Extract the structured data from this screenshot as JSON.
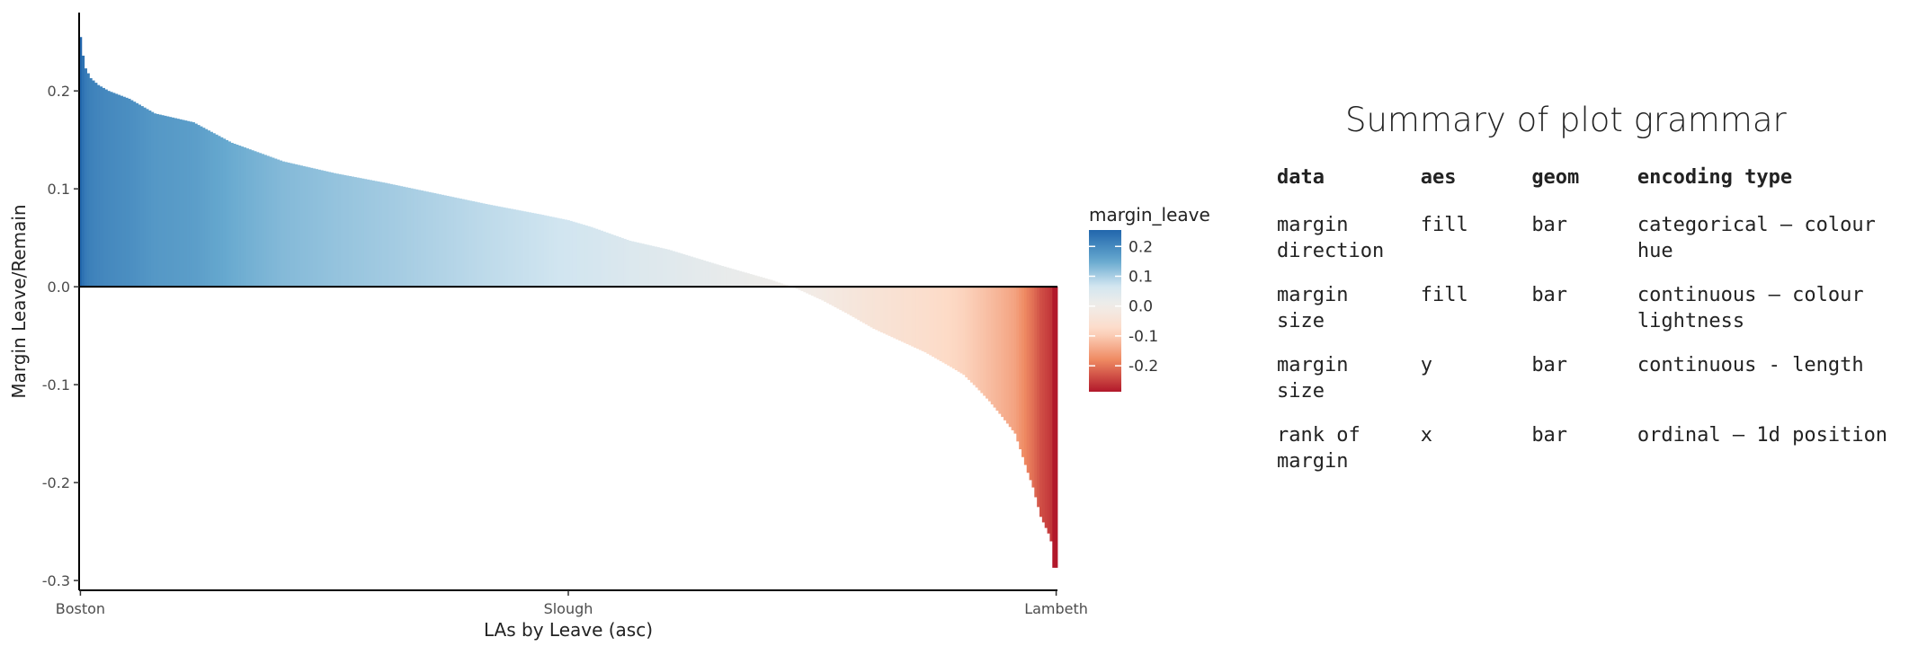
{
  "chart_data": {
    "type": "bar",
    "title": "",
    "xlabel": "LAs by Leave (asc)",
    "ylabel": "Margin Leave/Remain",
    "ylim": [
      -0.31,
      0.28
    ],
    "yticks": [
      0.2,
      0.1,
      0.0,
      -0.1,
      -0.2,
      -0.3
    ],
    "ytick_labels": [
      "0.2",
      "0.1",
      "0.0",
      "-0.1",
      "-0.2",
      "-0.3"
    ],
    "x_tick_labels": [
      {
        "label": "Boston",
        "rank": 1
      },
      {
        "label": "Slough",
        "rank": 191
      },
      {
        "label": "Lambeth",
        "rank": 381
      }
    ],
    "n_bars": 381,
    "value_profile": {
      "ranks": [
        1,
        2,
        3,
        5,
        8,
        12,
        20,
        30,
        45,
        60,
        80,
        100,
        120,
        140,
        160,
        180,
        191,
        200,
        215,
        230,
        250,
        270,
        280,
        290,
        300,
        310,
        320,
        330,
        340,
        345,
        350,
        355,
        360,
        365,
        370,
        372,
        375,
        378,
        379,
        380,
        381
      ],
      "values": [
        0.255,
        0.236,
        0.223,
        0.213,
        0.206,
        0.2,
        0.192,
        0.177,
        0.168,
        0.147,
        0.128,
        0.116,
        0.106,
        0.095,
        0.084,
        0.074,
        0.068,
        0.061,
        0.047,
        0.038,
        0.022,
        0.007,
        -0.002,
        -0.014,
        -0.028,
        -0.043,
        -0.055,
        -0.067,
        -0.082,
        -0.09,
        -0.103,
        -0.117,
        -0.133,
        -0.15,
        -0.19,
        -0.205,
        -0.235,
        -0.252,
        -0.26,
        -0.287,
        -0.287
      ]
    },
    "legend": {
      "title": "margin_leave",
      "labels": [
        "0.2",
        "0.1",
        "0.0",
        "-0.1",
        "-0.2"
      ],
      "values": [
        0.2,
        0.1,
        0.0,
        -0.1,
        -0.2
      ],
      "range": [
        -0.287,
        0.255
      ],
      "placement": "right"
    },
    "colors": {
      "high": "#2166ac",
      "mid_high": "#67a9cf",
      "light_high": "#d1e5f0",
      "mid": "#f1ede9",
      "light_low": "#fddbc7",
      "mid_low": "#ef8a62",
      "low": "#b2182b"
    },
    "grid": false
  },
  "summary": {
    "title": "Summary of plot grammar",
    "headers": [
      "data",
      "aes",
      "geom",
      "encoding type"
    ],
    "rows": [
      {
        "data": [
          "margin",
          "direction"
        ],
        "aes": "fill",
        "geom": "bar",
        "encoding": [
          "categorical – colour",
          "hue"
        ]
      },
      {
        "data": [
          "margin",
          "size"
        ],
        "aes": "fill",
        "geom": "bar",
        "encoding": [
          "continuous – colour",
          "lightness"
        ]
      },
      {
        "data": [
          "margin",
          "size"
        ],
        "aes": "y",
        "geom": "bar",
        "encoding": [
          "continuous - length"
        ]
      },
      {
        "data": [
          "rank of",
          "margin"
        ],
        "aes": "x",
        "geom": "bar",
        "encoding": [
          "ordinal – 1d position"
        ]
      }
    ]
  }
}
